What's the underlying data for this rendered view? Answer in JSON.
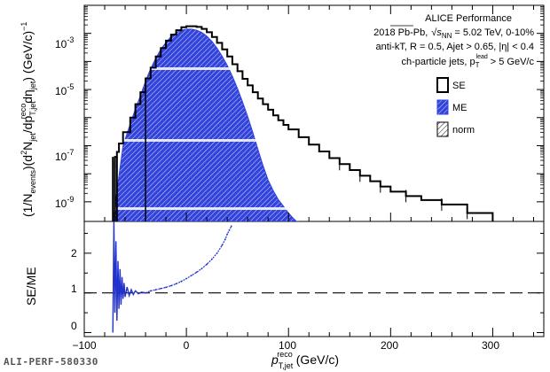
{
  "chart_data": [
    {
      "type": "line",
      "panel": "top",
      "annotations": [
        "ALICE Performance",
        "2018 Pb-Pb, √s_NN = 5.02 TeV, 0-10%",
        "anti-k_T, R = 0.5, A_jet > 0.65, |η| < 0.4",
        "ch-particle jets, p_T^lead > 5 GeV/c"
      ],
      "ylabel": "(1/N_events)(d²N_jet/dp_T,jet^reco dη_jet) (GeV/c)^-1",
      "ylog": true,
      "ylim": [
        2e-10,
        0.01
      ],
      "xlim": [
        -100,
        350
      ],
      "yticks": [
        "10^-3",
        "10^-5",
        "10^-7",
        "10^-9"
      ],
      "series": [
        {
          "name": "SE",
          "style": "black-line",
          "x": [
            -72,
            -70,
            -68,
            -66,
            -62,
            -55,
            -50,
            -45,
            -40,
            -35,
            -30,
            -25,
            -20,
            -15,
            -10,
            -5,
            0,
            5,
            10,
            15,
            20,
            25,
            30,
            35,
            40,
            45,
            50,
            55,
            60,
            65,
            70,
            75,
            80,
            85,
            90,
            95,
            100,
            110,
            120,
            130,
            140,
            150,
            160,
            170,
            180,
            190,
            200,
            215,
            230,
            250,
            275,
            300
          ],
          "y": [
            2e-10,
            4e-08,
            6e-08,
            1.2e-07,
            3e-07,
            1e-06,
            3e-06,
            8e-06,
            2.5e-05,
            6e-05,
            0.00015,
            0.0003,
            0.00055,
            0.0009,
            0.0013,
            0.00165,
            0.0018,
            0.0018,
            0.0017,
            0.00145,
            0.0011,
            0.00075,
            0.00046,
            0.00027,
            0.00015,
            8e-05,
            4.5e-05,
            2.4e-05,
            1.4e-05,
            8e-06,
            4.8e-06,
            3e-06,
            1.9e-06,
            1.2e-06,
            8e-07,
            5.5e-07,
            3.8e-07,
            2e-07,
            1.1e-07,
            6.2e-08,
            3.6e-08,
            2.2e-08,
            1.35e-08,
            8.5e-09,
            5.4e-09,
            3.5e-09,
            2.3e-09,
            1.6e-09,
            1.15e-09,
            8e-10,
            4e-10,
            2e-10
          ]
        },
        {
          "name": "ME",
          "style": "blue-hatched-fill",
          "x": [
            -72,
            -62,
            -55,
            -50,
            -45,
            -40,
            -35,
            -30,
            -25,
            -20,
            -15,
            -10,
            -5,
            0,
            5,
            10,
            15,
            20,
            25,
            30,
            35,
            40,
            45,
            50,
            55,
            60,
            65,
            70,
            75,
            80,
            85,
            90,
            95,
            100,
            105,
            108,
            110
          ],
          "y": [
            2e-10,
            1e-07,
            6e-07,
            2e-06,
            6e-06,
            2e-05,
            5.5e-05,
            0.00013,
            0.00027,
            0.00048,
            0.00076,
            0.00105,
            0.0013,
            0.00142,
            0.00142,
            0.0013,
            0.00108,
            0.0008,
            0.00052,
            0.0003,
            0.000155,
            7.2e-05,
            3e-05,
            1.1e-05,
            3.6e-06,
            1.1e-06,
            3e-07,
            7.5e-08,
            2e-08,
            6e-09,
            2.5e-09,
            1.2e-09,
            7e-10,
            4e-10,
            2.5e-10,
            2e-10,
            2e-10
          ]
        },
        {
          "name": "norm",
          "style": "hatched-box",
          "x": [],
          "y": []
        }
      ],
      "legend": [
        "SE",
        "ME",
        "norm"
      ],
      "legend_position": "right"
    },
    {
      "type": "line",
      "panel": "bottom",
      "ylabel": "SE/ME",
      "xlabel": "p_T,jet^reco (GeV/c)",
      "xlim": [
        -100,
        350
      ],
      "ylim": [
        -0.1,
        2.8
      ],
      "xticks": [
        "-100",
        "0",
        "100",
        "200",
        "300"
      ],
      "yticks": [
        "0",
        "1",
        "2"
      ],
      "reference_line": 1,
      "series": [
        {
          "name": "SE/ME",
          "style": "blue-points",
          "x": [
            -40,
            -35,
            -30,
            -25,
            -20,
            -15,
            -10,
            -5,
            0,
            5,
            10,
            15,
            20,
            25,
            30,
            35,
            38,
            40,
            42,
            44
          ],
          "y": [
            1.0,
            1.05,
            1.08,
            1.11,
            1.14,
            1.18,
            1.23,
            1.29,
            1.36,
            1.44,
            1.52,
            1.61,
            1.72,
            1.85,
            2.0,
            2.2,
            2.35,
            2.48,
            2.58,
            2.68
          ]
        }
      ]
    }
  ],
  "labels": {
    "title1": "ALICE Performance",
    "line2_pre": "2018 Pb-Pb,",
    "line2_sqrt": "s",
    "line2_sub": "NN",
    "line2_post": "= 5.02 TeV, 0-10%",
    "line3": "anti-kT, R = 0.5, Ajet > 0.65, |η| <  0.4",
    "line4_pre": "ch-particle jets, p",
    "line4_sub": "T",
    "line4_sup": "lead",
    "line4_post": "> 5 GeV/c",
    "legend_se": "SE",
    "legend_me": "ME",
    "legend_norm": "norm",
    "ytick_1": "10",
    "ytick_1e": "-3",
    "ytick_2": "10",
    "ytick_2e": "-5",
    "ytick_3": "10",
    "ytick_3e": "-7",
    "ytick_4": "10",
    "ytick_4e": "-9",
    "ratio_ytick_0": "0",
    "ratio_ytick_1": "1",
    "ratio_ytick_2": "2",
    "xtick_m100": "−100",
    "xtick_0": "0",
    "xtick_100": "100",
    "xtick_200": "200",
    "xtick_300": "300",
    "ylabel_top": "(1/N",
    "ylabel_top_sub1": "events",
    "ylabel_top_mid": ")(d",
    "ylabel_top_sup2": "2",
    "ylabel_top_N": "N",
    "ylabel_top_sub2": "jet",
    "ylabel_top_dp": "/dp",
    "ylabel_top_sub3": "T,jet",
    "ylabel_top_sup3": "reco",
    "ylabel_top_deta": "dη",
    "ylabel_top_sub4": "jet",
    "ylabel_top_end": ") (GeV/c)",
    "ylabel_top_sup4": "−1",
    "ylabel_bottom": "SE/ME",
    "xlabel_p": "p",
    "xlabel_sub": "T,jet",
    "xlabel_sup": "reco",
    "xlabel_unit": "(GeV/c)",
    "preliminary_id": "ALI-PERF-580330"
  },
  "colors": {
    "se": "#000000",
    "me": "#3344dd",
    "me_hatch": "#ffffff",
    "ratio": "#2233cc"
  }
}
